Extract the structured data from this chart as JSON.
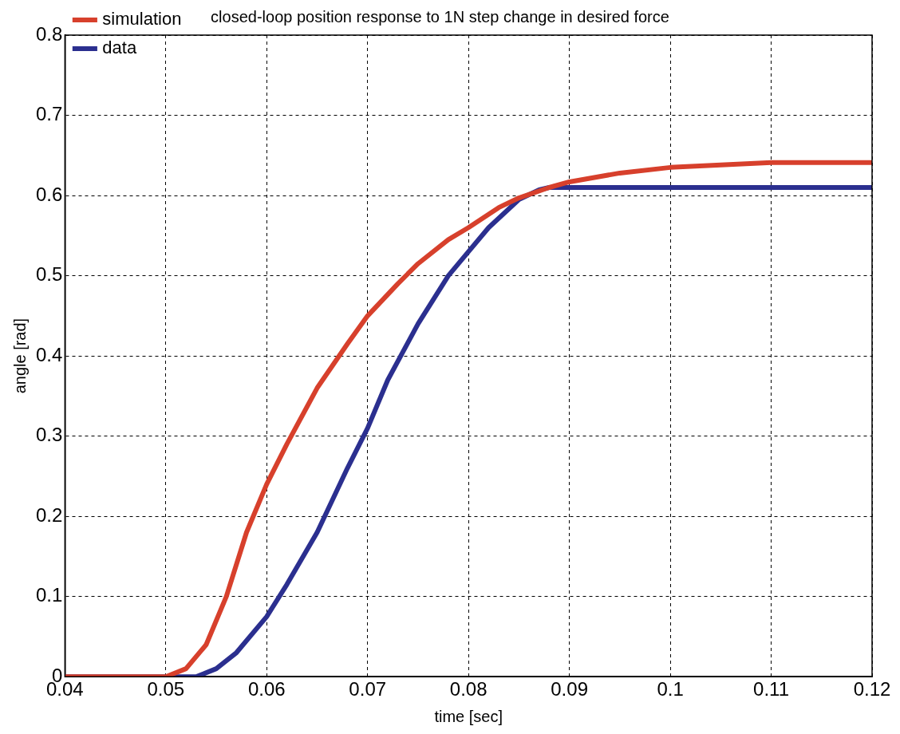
{
  "chart_data": {
    "type": "line",
    "title": "closed-loop position response to 1N step change in desired force",
    "xlabel": "time [sec]",
    "ylabel": "angle [rad]",
    "xlim": [
      0.04,
      0.12
    ],
    "xticks": [
      0.04,
      0.05,
      0.06,
      0.07,
      0.08,
      0.09,
      0.1,
      0.11,
      0.12
    ],
    "ylim": [
      0,
      0.8
    ],
    "yticks": [
      0,
      0.1,
      0.2,
      0.3,
      0.4,
      0.5,
      0.6,
      0.7,
      0.8
    ],
    "grid": true,
    "legend": "top left",
    "line_style": "solid",
    "marker": "none",
    "series": [
      {
        "name": "simulation",
        "color": "#d7402c",
        "x": [
          0.04,
          0.05,
          0.052,
          0.054,
          0.056,
          0.058,
          0.06,
          0.062,
          0.065,
          0.068,
          0.07,
          0.073,
          0.075,
          0.078,
          0.08,
          0.083,
          0.085,
          0.088,
          0.09,
          0.095,
          0.1,
          0.105,
          0.11,
          0.115,
          0.12
        ],
        "values": [
          0,
          0,
          0.01,
          0.04,
          0.1,
          0.18,
          0.24,
          0.29,
          0.36,
          0.415,
          0.45,
          0.49,
          0.515,
          0.545,
          0.56,
          0.585,
          0.597,
          0.61,
          0.617,
          0.628,
          0.635,
          0.638,
          0.641,
          0.641,
          0.641
        ]
      },
      {
        "name": "data",
        "color": "#2b2f8f",
        "x": [
          0.04,
          0.053,
          0.055,
          0.057,
          0.06,
          0.062,
          0.065,
          0.068,
          0.07,
          0.072,
          0.075,
          0.078,
          0.08,
          0.082,
          0.085,
          0.087,
          0.088,
          0.09,
          0.1,
          0.11,
          0.12
        ],
        "values": [
          0,
          0,
          0.01,
          0.03,
          0.075,
          0.115,
          0.18,
          0.26,
          0.31,
          0.37,
          0.44,
          0.5,
          0.53,
          0.56,
          0.595,
          0.607,
          0.61,
          0.61,
          0.61,
          0.61,
          0.61
        ]
      }
    ]
  }
}
